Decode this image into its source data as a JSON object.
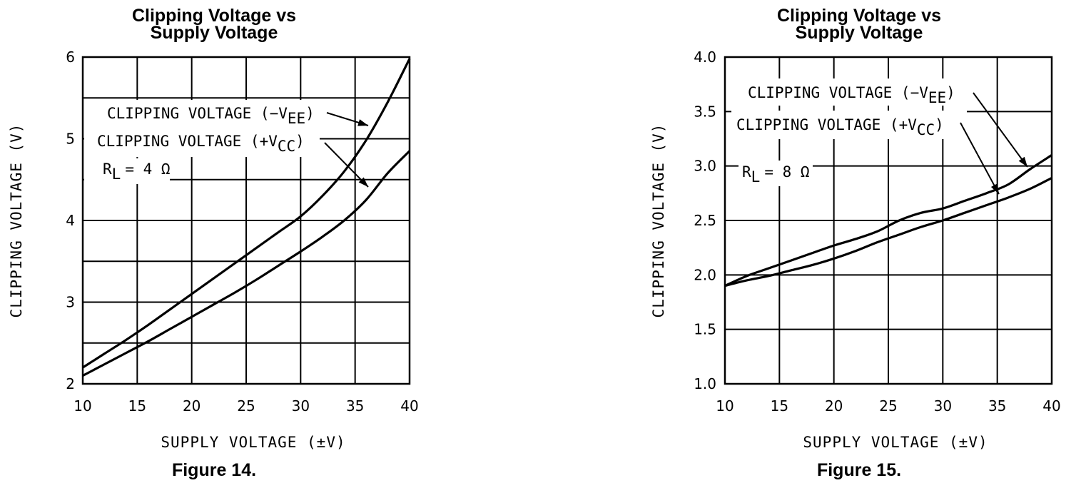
{
  "chart_data": [
    {
      "type": "line",
      "title": "Clipping Voltage vs Supply Voltage",
      "title_lines": [
        "Clipping Voltage vs",
        "Supply Voltage"
      ],
      "caption": "Figure 14.",
      "xlabel": "SUPPLY VOLTAGE (±V)",
      "ylabel": "CLIPPING VOLTAGE (V)",
      "xlim": [
        10,
        40
      ],
      "ylim": [
        2,
        6
      ],
      "xticks": [
        10,
        15,
        20,
        25,
        30,
        35,
        40
      ],
      "yticks": [
        2,
        3,
        4,
        5,
        6
      ],
      "yticklabels": [
        "2",
        "3",
        "4",
        "5",
        "6"
      ],
      "grid": true,
      "annotation_note": "R_L = 4 Ω",
      "annotation": {
        "r": "R",
        "r_sub": "L",
        "value": "= 4 Ω"
      },
      "series": [
        {
          "label_main": "CLIPPING VOLTAGE (−V",
          "label_sub": "EE",
          "label_close": ")",
          "x": [
            10,
            12,
            14,
            16,
            18,
            20,
            22,
            24,
            26,
            28,
            30,
            32,
            34,
            36,
            38,
            40
          ],
          "y": [
            2.2,
            2.37,
            2.54,
            2.72,
            2.91,
            3.1,
            3.29,
            3.48,
            3.67,
            3.86,
            4.05,
            4.3,
            4.6,
            4.98,
            5.45,
            5.98
          ]
        },
        {
          "label_main": "CLIPPING VOLTAGE (+V",
          "label_sub": "CC",
          "label_close": ")",
          "x": [
            10,
            12,
            14,
            16,
            18,
            20,
            22,
            24,
            26,
            28,
            30,
            32,
            34,
            36,
            38,
            40
          ],
          "y": [
            2.1,
            2.24,
            2.38,
            2.52,
            2.67,
            2.82,
            2.97,
            3.12,
            3.28,
            3.45,
            3.62,
            3.8,
            4.0,
            4.25,
            4.58,
            4.85
          ]
        }
      ]
    },
    {
      "type": "line",
      "title": "Clipping Voltage vs Supply Voltage",
      "title_lines": [
        "Clipping Voltage vs",
        "Supply Voltage"
      ],
      "caption": "Figure 15.",
      "xlabel": "SUPPLY VOLTAGE (±V)",
      "ylabel": "CLIPPING VOLTAGE (V)",
      "xlim": [
        10,
        40
      ],
      "ylim": [
        1.0,
        4.0
      ],
      "xticks": [
        10,
        15,
        20,
        25,
        30,
        35,
        40
      ],
      "yticks": [
        1.0,
        1.5,
        2.0,
        2.5,
        3.0,
        3.5,
        4.0
      ],
      "yticklabels": [
        "1.0",
        "1.5",
        "2.0",
        "2.5",
        "3.0",
        "3.5",
        "4.0"
      ],
      "grid": true,
      "annotation_note": "R_L = 8 Ω",
      "annotation": {
        "r": "R",
        "r_sub": "L",
        "value": "= 8 Ω"
      },
      "series": [
        {
          "label_main": "CLIPPING VOLTAGE (−V",
          "label_sub": "EE",
          "label_close": ")",
          "x": [
            10,
            12,
            14,
            16,
            18,
            20,
            22,
            24,
            26,
            28,
            30,
            32,
            34,
            36,
            38,
            40
          ],
          "y": [
            1.9,
            1.99,
            2.06,
            2.13,
            2.2,
            2.27,
            2.33,
            2.4,
            2.5,
            2.57,
            2.61,
            2.68,
            2.75,
            2.83,
            2.97,
            3.1
          ]
        },
        {
          "label_main": "CLIPPING VOLTAGE (+V",
          "label_sub": "CC",
          "label_close": ")",
          "x": [
            10,
            12,
            14,
            16,
            18,
            20,
            22,
            24,
            26,
            28,
            30,
            32,
            34,
            36,
            38,
            40
          ],
          "y": [
            1.9,
            1.95,
            1.99,
            2.04,
            2.09,
            2.15,
            2.22,
            2.3,
            2.37,
            2.44,
            2.5,
            2.57,
            2.64,
            2.71,
            2.79,
            2.89
          ]
        }
      ]
    }
  ]
}
